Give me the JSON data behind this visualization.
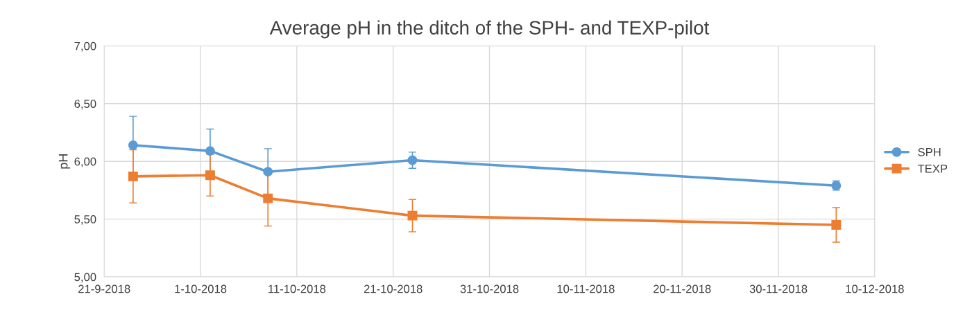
{
  "chart_data": {
    "type": "line",
    "title": "Average pH in the ditch of the SPH- and TEXP-pilot",
    "ylabel": "pH",
    "x": [
      "2018-09-24",
      "2018-10-02",
      "2018-10-08",
      "2018-10-23",
      "2018-12-06"
    ],
    "series": [
      {
        "name": "SPH",
        "color": "#5b9bd5",
        "marker": "circle",
        "values": [
          6.14,
          6.09,
          5.91,
          6.01,
          5.79
        ],
        "errors": [
          0.25,
          0.19,
          0.2,
          0.07,
          0.04
        ]
      },
      {
        "name": "TEXP",
        "color": "#ed7d31",
        "marker": "square",
        "values": [
          5.87,
          5.88,
          5.68,
          5.53,
          5.45
        ],
        "errors": [
          0.23,
          0.18,
          0.24,
          0.14,
          0.15
        ]
      }
    ],
    "xlim": [
      "2018-09-21",
      "2018-12-10"
    ],
    "xticks": [
      {
        "value": "2018-09-21",
        "label": "21-9-2018"
      },
      {
        "value": "2018-10-01",
        "label": "1-10-2018"
      },
      {
        "value": "2018-10-11",
        "label": "11-10-2018"
      },
      {
        "value": "2018-10-21",
        "label": "21-10-2018"
      },
      {
        "value": "2018-10-31",
        "label": "31-10-2018"
      },
      {
        "value": "2018-11-10",
        "label": "10-11-2018"
      },
      {
        "value": "2018-11-20",
        "label": "20-11-2018"
      },
      {
        "value": "2018-11-30",
        "label": "30-11-2018"
      },
      {
        "value": "2018-12-10",
        "label": "10-12-2018"
      }
    ],
    "ylim": [
      5.0,
      7.0
    ],
    "yticks": [
      {
        "value": 5.0,
        "label": "5,00"
      },
      {
        "value": 5.5,
        "label": "5,50"
      },
      {
        "value": 6.0,
        "label": "6,00"
      },
      {
        "value": 6.5,
        "label": "6,50"
      },
      {
        "value": 7.0,
        "label": "7,00"
      }
    ],
    "grid": true,
    "legend": "right",
    "line_style": "solid"
  }
}
